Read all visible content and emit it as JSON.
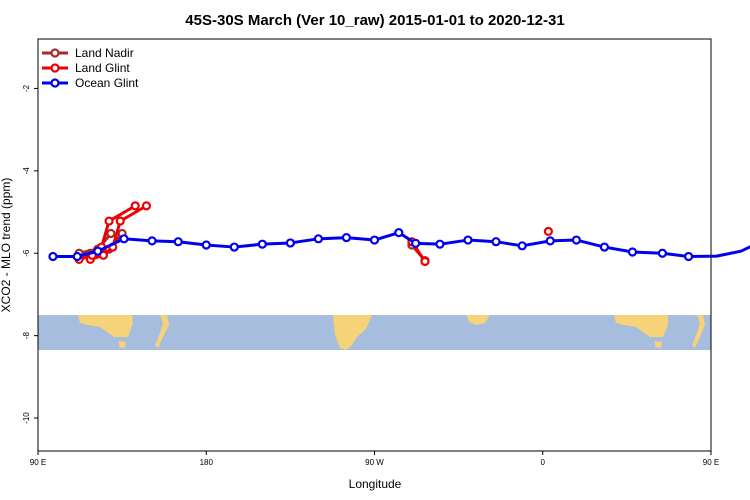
{
  "chart_data": {
    "type": "line",
    "title": "45S-30S March (Ver 10_raw)   2015-01-01 to 2020-12-31",
    "xlabel": "Longitude",
    "ylabel": "XCO2 - MLO trend (ppm)",
    "xlim": [
      90,
      450
    ],
    "ylim": [
      -10.8,
      -0.8
    ],
    "x_ticks": [
      {
        "value": 90,
        "label": "90 E"
      },
      {
        "value": 180,
        "label": "180"
      },
      {
        "value": 270,
        "label": "90 W"
      },
      {
        "value": 360,
        "label": "0"
      },
      {
        "value": 450,
        "label": "90 E"
      },
      {
        "value": 540,
        "label": "180"
      }
    ],
    "y_ticks": [
      {
        "value": -2,
        "label": "-2"
      },
      {
        "value": -4,
        "label": "-4"
      },
      {
        "value": -6,
        "label": "-6"
      },
      {
        "value": -8,
        "label": "-8"
      },
      {
        "value": -10,
        "label": "-10"
      }
    ],
    "map_strip": {
      "y_top": -7.5,
      "y_bottom": -8.35,
      "ocean_color": "#a7bddd",
      "land_color": "#f6d278"
    },
    "legend_position": "top-left",
    "series": [
      {
        "name": "Land Nadir",
        "color": "#a52a2a",
        "segments": [
          [
            [
              118,
              -6.0
            ],
            [
              128,
              -5.9
            ],
            [
              135,
              -5.52
            ]
          ],
          [
            [
              290,
              -5.8
            ],
            [
              297,
              -6.18
            ]
          ],
          [
            [
              112,
              -6.0
            ],
            [
              122,
              -5.9
            ],
            [
              129,
              -5.52
            ]
          ]
        ]
      },
      {
        "name": "Land Glint",
        "color": "#ee0000",
        "segments": [
          [
            [
              118,
              -6.15
            ],
            [
              125,
              -6.05
            ],
            [
              130,
              -5.85
            ],
            [
              134,
              -5.22
            ],
            [
              148,
              -4.85
            ]
          ],
          [
            [
              290,
              -5.72
            ],
            [
              297,
              -6.2
            ]
          ],
          [
            [
              363,
              -5.47
            ]
          ],
          [
            [
              112,
              -6.15
            ],
            [
              119,
              -6.05
            ],
            [
              124,
              -5.85
            ],
            [
              128,
              -5.22
            ],
            [
              142,
              -4.85
            ]
          ]
        ]
      },
      {
        "name": "Ocean Glint",
        "color": "#0000ee",
        "segments": [
          [
            [
              98,
              -6.08
            ],
            [
              111,
              -6.08
            ],
            [
              122,
              -5.95
            ],
            [
              136,
              -5.65
            ],
            [
              151,
              -5.7
            ],
            [
              165,
              -5.72
            ],
            [
              180,
              -5.8
            ],
            [
              195,
              -5.85
            ],
            [
              210,
              -5.78
            ],
            [
              225,
              -5.75
            ],
            [
              240,
              -5.65
            ],
            [
              255,
              -5.62
            ],
            [
              270,
              -5.68
            ],
            [
              283,
              -5.5
            ],
            [
              292,
              -5.76
            ],
            [
              305,
              -5.78
            ],
            [
              320,
              -5.68
            ],
            [
              335,
              -5.72
            ],
            [
              349,
              -5.82
            ],
            [
              364,
              -5.7
            ],
            [
              378,
              -5.68
            ],
            [
              393,
              -5.85
            ],
            [
              408,
              -5.97
            ],
            [
              424,
              -6.0
            ],
            [
              438,
              -6.08
            ],
            [
              453,
              -6.07
            ],
            [
              466,
              -5.95
            ],
            [
              480,
              -5.65
            ],
            [
              495,
              -5.7
            ],
            [
              510,
              -5.72
            ]
          ]
        ]
      }
    ]
  }
}
